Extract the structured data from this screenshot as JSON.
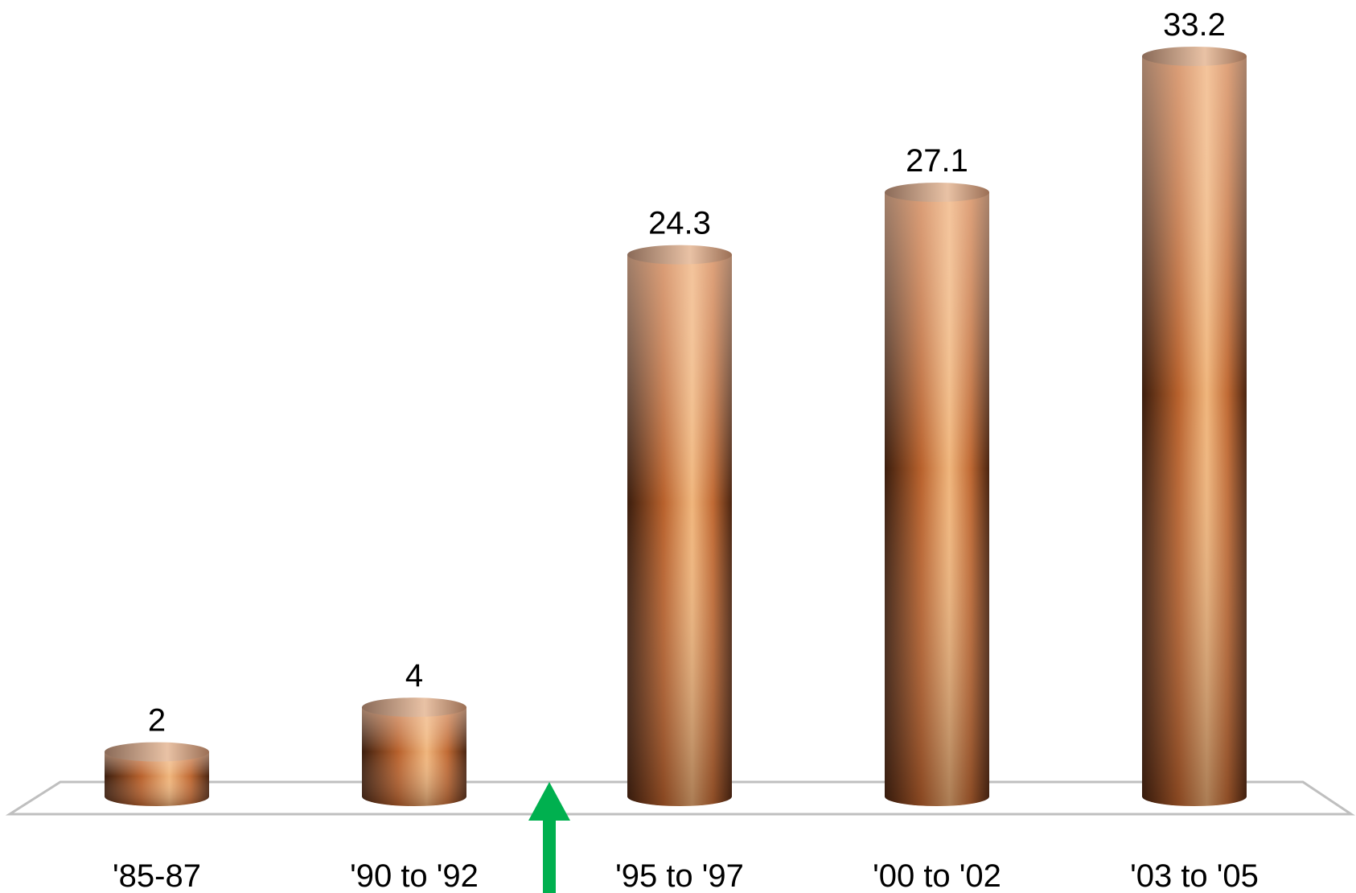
{
  "chart_data": {
    "type": "bar",
    "categories": [
      "'85-87",
      "'90 to '92",
      "'95 to '97",
      "'00 to '02",
      "'03 to '05"
    ],
    "values": [
      2,
      4,
      24.3,
      27.1,
      33.2
    ],
    "data_labels": [
      "2",
      "4",
      "24.3",
      "27.1",
      "33.2"
    ],
    "title": "",
    "xlabel": "",
    "ylabel": "",
    "ylim": [
      0,
      33.2
    ],
    "grid": false,
    "legend": "none",
    "style": "3d-cylinder",
    "annotations": [
      {
        "type": "arrow",
        "direction": "up",
        "between": [
          "'90 to '92",
          "'95 to '97"
        ],
        "color": "#00b04f"
      }
    ],
    "colors": {
      "bar_light": "#f7cfb4",
      "bar_mid": "#f0b67d",
      "bar_orange": "#b9622d",
      "bar_dark": "#3b1d0d",
      "floor_stroke": "#bfbfbf"
    }
  }
}
